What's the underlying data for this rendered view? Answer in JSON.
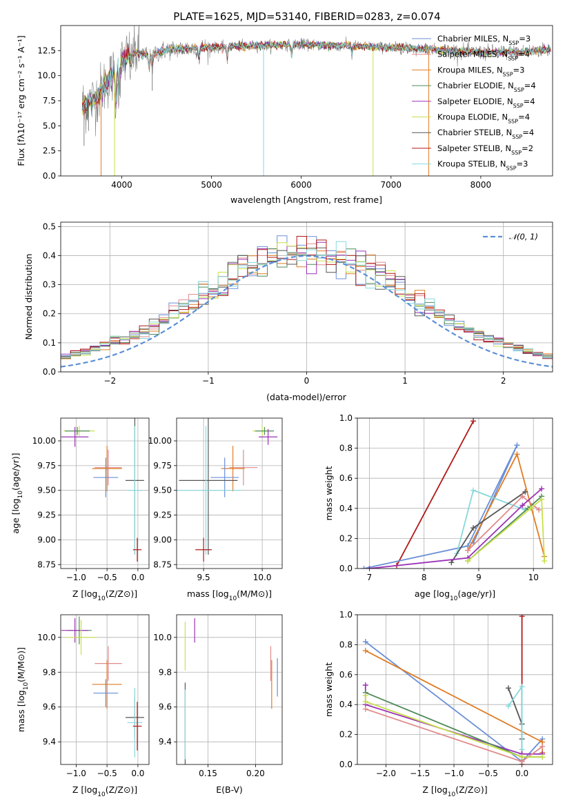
{
  "figure": {
    "title": "PLATE=1625, MJD=53140, FIBERID=0283, z=0.074"
  },
  "colors": {
    "Chabrier MILES": "#6a8fd6",
    "Salpeter MILES": "#e08a8a",
    "Kroupa MILES": "#e07b24",
    "Chabrier ELODIE": "#4f8a5a",
    "Salpeter ELODIE": "#9b30b5",
    "Kroupa ELODIE": "#c8e04a",
    "Chabrier STELIB": "#555555",
    "Salpeter STELIB": "#b01818",
    "Kroupa STELIB": "#86d8dc",
    "data": "#808080",
    "normal": "#5b8fd6"
  },
  "legend_spectrum": [
    {
      "model": "Chabrier MILES",
      "text": "Chabrier MILES, N",
      "sub": "SSP",
      "n": "=3"
    },
    {
      "model": "Salpeter MILES",
      "text": "Salpeter MILES, N",
      "sub": "SSP",
      "n": "=4"
    },
    {
      "model": "Kroupa MILES",
      "text": "Kroupa MILES, N",
      "sub": "SSP",
      "n": "=3"
    },
    {
      "model": "Chabrier ELODIE",
      "text": "Chabrier ELODIE, N",
      "sub": "SSP",
      "n": "=4"
    },
    {
      "model": "Salpeter ELODIE",
      "text": "Salpeter ELODIE, N",
      "sub": "SSP",
      "n": "=4"
    },
    {
      "model": "Kroupa ELODIE",
      "text": "Kroupa ELODIE, N",
      "sub": "SSP",
      "n": "=4"
    },
    {
      "model": "Chabrier STELIB",
      "text": "Chabrier STELIB, N",
      "sub": "SSP",
      "n": "=4"
    },
    {
      "model": "Salpeter STELIB",
      "text": "Salpeter STELIB, N",
      "sub": "SSP",
      "n": "=2"
    },
    {
      "model": "Kroupa STELIB",
      "text": "Kroupa STELIB, N",
      "sub": "SSP",
      "n": "=3"
    }
  ],
  "chart_data": [
    {
      "id": "spectrum",
      "type": "line",
      "xlabel": "wavelength [Angstrom, rest frame]",
      "ylabel": "Flux [fλ10⁻¹⁷ erg cm⁻² s⁻¹ A⁻¹]",
      "xlim": [
        3320,
        8800
      ],
      "ylim": [
        0,
        15
      ],
      "xticks": [
        4000,
        5000,
        6000,
        7000,
        8000
      ],
      "yticks": [
        0.0,
        2.5,
        5.0,
        7.5,
        10.0,
        12.5
      ],
      "continuum": [
        [
          3560,
          7.0
        ],
        [
          3700,
          7.6
        ],
        [
          3850,
          9.6
        ],
        [
          3950,
          10.4
        ],
        [
          4050,
          11.9
        ],
        [
          4150,
          12.3
        ],
        [
          4300,
          12.0
        ],
        [
          4500,
          12.6
        ],
        [
          4700,
          12.7
        ],
        [
          5000,
          12.8
        ],
        [
          5500,
          13.0
        ],
        [
          6000,
          13.1
        ],
        [
          6500,
          13.0
        ],
        [
          7000,
          12.8
        ],
        [
          7500,
          12.6
        ],
        [
          8000,
          12.3
        ],
        [
          8500,
          12.4
        ],
        [
          8780,
          12.6
        ]
      ],
      "absorption_lines": [
        [
          3934,
          3.5
        ],
        [
          3969,
          3.0
        ],
        [
          4102,
          1.5
        ],
        [
          4305,
          1.5
        ],
        [
          4340,
          1.5
        ],
        [
          4861,
          1.2
        ],
        [
          5175,
          1.5
        ],
        [
          5894,
          1.3
        ],
        [
          6563,
          1.0
        ]
      ],
      "spikes": [
        [
          5580,
          0.0
        ],
        [
          6800,
          0.0
        ],
        [
          7420,
          0.0
        ],
        [
          3770,
          0.0
        ],
        [
          3920,
          0.0
        ],
        [
          3580,
          3.0
        ],
        [
          3630,
          4.5
        ],
        [
          4340,
          8.5
        ]
      ]
    },
    {
      "id": "residual-histogram",
      "type": "histogram",
      "xlabel": "(data-model)/error",
      "ylabel": "Normed distribution",
      "xlim": [
        -2.5,
        2.5
      ],
      "ylim": [
        0,
        0.515
      ],
      "xticks": [
        -2,
        -1,
        0,
        1,
        2
      ],
      "yticks": [
        0.0,
        0.1,
        0.2,
        0.3,
        0.4,
        0.5
      ],
      "bin_width": 0.1,
      "bin_start": -2.5,
      "series_name": "𝒩(0, 1)"
    },
    {
      "id": "age-vs-Z",
      "type": "errorbar",
      "xlabel_main": "Z [log",
      "xlabel_sub": "10",
      "xlabel_rest": "(Z/Z⊙)]",
      "ylabel_main": "age  [log",
      "ylabel_sub": "10",
      "ylabel_rest": "(age/yr)]",
      "xlim": [
        -1.25,
        0.18
      ],
      "ylim": [
        8.71,
        10.23
      ],
      "xticks": [
        -1.0,
        -0.5,
        0.0
      ],
      "yticks": [
        8.75,
        9.0,
        9.25,
        9.5,
        9.75,
        10.0
      ],
      "points": [
        {
          "model": "Kroupa ELODIE",
          "x": -0.95,
          "xerr": 0.25,
          "y": 10.1,
          "yerr": 0.05
        },
        {
          "model": "Chabrier ELODIE",
          "x": -0.98,
          "xerr": 0.2,
          "y": 10.1,
          "yerr": 0.04
        },
        {
          "model": "Salpeter ELODIE",
          "x": -1.02,
          "xerr": 0.22,
          "y": 10.04,
          "yerr": 0.1
        },
        {
          "model": "Salpeter MILES",
          "x": -0.48,
          "xerr": 0.22,
          "y": 9.73,
          "yerr": 0.18
        },
        {
          "model": "Kroupa MILES",
          "x": -0.5,
          "xerr": 0.24,
          "y": 9.72,
          "yerr": 0.23
        },
        {
          "model": "Chabrier MILES",
          "x": -0.52,
          "xerr": 0.2,
          "y": 9.63,
          "yerr": 0.2
        },
        {
          "model": "Chabrier STELIB",
          "x": -0.05,
          "xerr": 0.15,
          "y": 9.6,
          "yerr": 0.75
        },
        {
          "model": "Kroupa STELIB",
          "x": -0.05,
          "xerr": 0.12,
          "y": 9.5,
          "yerr": 0.65
        },
        {
          "model": "Salpeter STELIB",
          "x": -0.01,
          "xerr": 0.07,
          "y": 8.9,
          "yerr": 0.12
        }
      ]
    },
    {
      "id": "age-vs-mass",
      "type": "errorbar",
      "xlabel_main": "mass [log",
      "xlabel_sub": "10",
      "xlabel_rest": "(M/M⊙)]",
      "xlim": [
        9.27,
        10.17
      ],
      "ylim": [
        8.71,
        10.23
      ],
      "xticks": [
        9.5,
        10.0
      ],
      "yticks": [
        8.75,
        9.0,
        9.25,
        9.5,
        9.75,
        10.0
      ],
      "points": [
        {
          "model": "Kroupa ELODIE",
          "x": 10.0,
          "xerr": 0.08,
          "y": 10.1,
          "yerr": 0.05
        },
        {
          "model": "Chabrier ELODIE",
          "x": 10.02,
          "xerr": 0.08,
          "y": 10.1,
          "yerr": 0.04
        },
        {
          "model": "Salpeter ELODIE",
          "x": 10.05,
          "xerr": 0.08,
          "y": 10.04,
          "yerr": 0.08
        },
        {
          "model": "Salpeter MILES",
          "x": 9.84,
          "xerr": 0.12,
          "y": 9.73,
          "yerr": 0.18
        },
        {
          "model": "Kroupa MILES",
          "x": 9.75,
          "xerr": 0.1,
          "y": 9.72,
          "yerr": 0.23
        },
        {
          "model": "Chabrier MILES",
          "x": 9.68,
          "xerr": 0.12,
          "y": 9.63,
          "yerr": 0.2
        },
        {
          "model": "Chabrier STELIB",
          "x": 9.54,
          "xerr": 0.25,
          "y": 9.6,
          "yerr": 0.75
        },
        {
          "model": "Kroupa STELIB",
          "x": 9.52,
          "xerr": 0.3,
          "y": 9.5,
          "yerr": 0.65
        },
        {
          "model": "Salpeter STELIB",
          "x": 9.5,
          "xerr": 0.07,
          "y": 8.9,
          "yerr": 0.12
        }
      ]
    },
    {
      "id": "mass-weight-vs-age",
      "type": "line",
      "xlabel_main": "age  [log",
      "xlabel_sub": "10",
      "xlabel_rest": "(age/yr)]",
      "ylabel": "mass weight",
      "xlim": [
        6.78,
        10.35
      ],
      "ylim": [
        0,
        1
      ],
      "xticks": [
        7,
        8,
        9,
        10
      ],
      "yticks": [
        0.0,
        0.2,
        0.4,
        0.6,
        0.8,
        1.0
      ],
      "series": [
        {
          "model": "Salpeter STELIB",
          "x": [
            7.5,
            8.9
          ],
          "y": [
            0.02,
            0.98
          ]
        },
        {
          "model": "Chabrier MILES",
          "x": [
            6.9,
            8.8,
            9.7,
            8.9
          ],
          "y": [
            0.0,
            0.15,
            0.82,
            0.17
          ]
        },
        {
          "model": "Kroupa MILES",
          "x": [
            8.8,
            9.7,
            10.2
          ],
          "y": [
            0.12,
            0.76,
            0.08
          ]
        },
        {
          "model": "Kroupa STELIB",
          "x": [
            8.6,
            8.9,
            9.85
          ],
          "y": [
            0.1,
            0.52,
            0.39
          ]
        },
        {
          "model": "Chabrier STELIB",
          "x": [
            8.5,
            8.9,
            9.85
          ],
          "y": [
            0.04,
            0.27,
            0.51
          ]
        },
        {
          "model": "Salpeter MILES",
          "x": [
            8.8,
            9.8,
            10.1
          ],
          "y": [
            0.12,
            0.48,
            0.39
          ]
        },
        {
          "model": "Salpeter ELODIE",
          "x": [
            7.0,
            8.8,
            9.8,
            10.15
          ],
          "y": [
            0.0,
            0.07,
            0.42,
            0.53
          ]
        },
        {
          "model": "Chabrier ELODIE",
          "x": [
            8.8,
            9.9,
            10.15
          ],
          "y": [
            0.05,
            0.4,
            0.48
          ]
        },
        {
          "model": "Kroupa ELODIE",
          "x": [
            8.8,
            9.95,
            10.15,
            10.2
          ],
          "y": [
            0.05,
            0.4,
            0.46,
            0.05
          ]
        }
      ]
    },
    {
      "id": "mass-vs-Z",
      "type": "errorbar",
      "xlabel_main": "Z [log",
      "xlabel_sub": "10",
      "xlabel_rest": "(Z/Z⊙)]",
      "ylabel_main": "mass [log",
      "ylabel_sub": "10",
      "ylabel_rest": "(M/M⊙)]",
      "xlim": [
        -1.25,
        0.18
      ],
      "ylim": [
        9.27,
        10.13
      ],
      "xticks": [
        -1.0,
        -0.5,
        0.0
      ],
      "yticks": [
        9.4,
        9.6,
        9.8,
        10.0
      ],
      "points": [
        {
          "model": "Chabrier ELODIE",
          "x": -0.95,
          "xerr": 0.2,
          "y": 10.04,
          "yerr": 0.08
        },
        {
          "model": "Salpeter ELODIE",
          "x": -1.02,
          "xerr": 0.22,
          "y": 10.04,
          "yerr": 0.07
        },
        {
          "model": "Kroupa ELODIE",
          "x": -0.92,
          "xerr": 0.25,
          "y": 10.0,
          "yerr": 0.1
        },
        {
          "model": "Salpeter MILES",
          "x": -0.48,
          "xerr": 0.22,
          "y": 9.85,
          "yerr": 0.1
        },
        {
          "model": "Kroupa MILES",
          "x": -0.5,
          "xerr": 0.24,
          "y": 9.73,
          "yerr": 0.14
        },
        {
          "model": "Chabrier MILES",
          "x": -0.52,
          "xerr": 0.2,
          "y": 9.68,
          "yerr": 0.08
        },
        {
          "model": "Chabrier STELIB",
          "x": -0.05,
          "xerr": 0.15,
          "y": 9.54,
          "yerr": 0.12
        },
        {
          "model": "Kroupa STELIB",
          "x": -0.05,
          "xerr": 0.12,
          "y": 9.51,
          "yerr": 0.2
        },
        {
          "model": "Salpeter STELIB",
          "x": -0.01,
          "xerr": 0.07,
          "y": 9.49,
          "yerr": 0.14
        }
      ]
    },
    {
      "id": "mass-vs-EBV",
      "type": "errorbar",
      "xlabel": "E(B-V)",
      "xlim": [
        0.117,
        0.228
      ],
      "ylim": [
        9.27,
        10.13
      ],
      "xticks": [
        0.15,
        0.2
      ],
      "yticks": [
        9.4,
        9.6,
        9.8,
        10.0
      ],
      "points": [
        {
          "model": "Kroupa ELODIE",
          "x": 0.126,
          "xerr": 0.0,
          "y": 9.95,
          "yerr": 0.14
        },
        {
          "model": "Salpeter ELODIE",
          "x": 0.136,
          "xerr": 0.0,
          "y": 10.04,
          "yerr": 0.07
        },
        {
          "model": "Chabrier STELIB",
          "x": 0.126,
          "xerr": 0.0,
          "y": 9.5,
          "yerr": 0.24
        },
        {
          "model": "Kroupa STELIB",
          "x": 0.126,
          "xerr": 0.0,
          "y": 9.5,
          "yerr": 0.2
        },
        {
          "model": "Salpeter MILES",
          "x": 0.216,
          "xerr": 0.0,
          "y": 9.85,
          "yerr": 0.1
        },
        {
          "model": "Kroupa MILES",
          "x": 0.217,
          "xerr": 0.0,
          "y": 9.73,
          "yerr": 0.14
        },
        {
          "model": "Chabrier MILES",
          "x": 0.223,
          "xerr": 0.0,
          "y": 9.77,
          "yerr": 0.11
        }
      ]
    },
    {
      "id": "mass-weight-vs-Z",
      "type": "line",
      "xlabel_main": "Z [log",
      "xlabel_sub": "10",
      "xlabel_rest": "(Z/Z⊙)]",
      "ylabel": "mass weight",
      "xlim": [
        -2.42,
        0.45
      ],
      "ylim": [
        0,
        1
      ],
      "xticks": [
        -2.0,
        -1.5,
        -1.0,
        -0.5,
        0.0
      ],
      "yticks": [
        0.0,
        0.2,
        0.4,
        0.6,
        0.8,
        1.0
      ],
      "series": [
        {
          "model": "Chabrier MILES",
          "x": [
            -2.3,
            0.0,
            0.3
          ],
          "y": [
            0.82,
            0.02,
            0.17
          ]
        },
        {
          "model": "Kroupa MILES",
          "x": [
            -2.3,
            0.3,
            0.3
          ],
          "y": [
            0.76,
            0.15,
            0.08
          ]
        },
        {
          "model": "Salpeter STELIB",
          "x": [
            0.0,
            0.0
          ],
          "y": [
            0.0,
            0.99
          ]
        },
        {
          "model": "Chabrier STELIB",
          "x": [
            -0.2,
            0.0,
            0.0
          ],
          "y": [
            0.51,
            0.27,
            0.17
          ]
        },
        {
          "model": "Kroupa STELIB",
          "x": [
            -0.2,
            0.0,
            0.0
          ],
          "y": [
            0.39,
            0.52,
            0.1
          ]
        },
        {
          "model": "Salpeter ELODIE",
          "x": [
            -2.3,
            -2.3,
            0.0,
            0.3
          ],
          "y": [
            0.53,
            0.4,
            0.07,
            0.07
          ]
        },
        {
          "model": "Salpeter MILES",
          "x": [
            -2.3,
            0.0,
            0.3
          ],
          "y": [
            0.37,
            0.02,
            0.12
          ]
        },
        {
          "model": "Chabrier ELODIE",
          "x": [
            -2.3,
            0.0,
            0.3
          ],
          "y": [
            0.48,
            0.05,
            0.05
          ]
        },
        {
          "model": "Kroupa ELODIE",
          "x": [
            -2.3,
            -2.3,
            0.0,
            0.3
          ],
          "y": [
            0.46,
            0.42,
            0.05,
            0.05
          ]
        }
      ]
    }
  ]
}
